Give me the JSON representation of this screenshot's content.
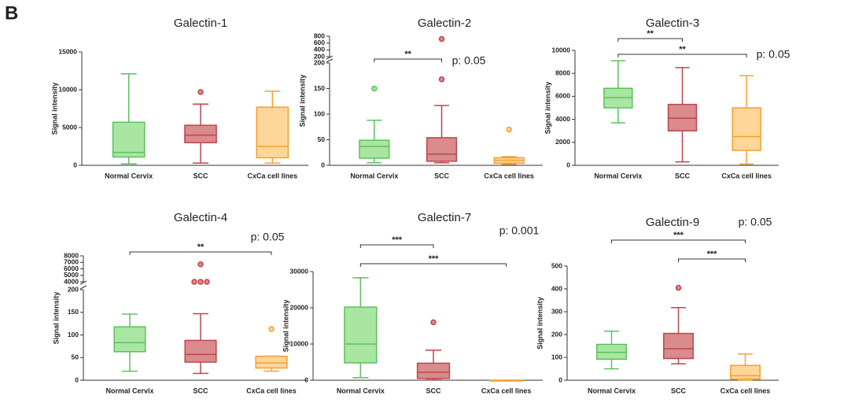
{
  "panel_label": "B",
  "chart_data": [
    {
      "type": "box",
      "title": "Galectin-1",
      "y_label": "Signal intensity",
      "categories": [
        "Normal Cervix",
        "SCC",
        "CxCa cell lines"
      ],
      "colors": [
        {
          "fill": "#a9e6a1",
          "stroke": "#5cc15c"
        },
        {
          "fill": "#d98b8d",
          "stroke": "#c0454a"
        },
        {
          "fill": "#ffd699",
          "stroke": "#f5a030"
        }
      ],
      "boxes": [
        {
          "min": 200,
          "q1": 1100,
          "median": 1700,
          "q3": 5700,
          "max": 12100,
          "outliers": []
        },
        {
          "min": 300,
          "q1": 3000,
          "median": 4000,
          "q3": 5300,
          "max": 8100,
          "outliers": [
            9700
          ]
        },
        {
          "min": 300,
          "q1": 1000,
          "median": 2500,
          "q3": 7700,
          "max": 9800,
          "outliers": []
        }
      ],
      "ylim": [
        0,
        15000
      ],
      "yticks": [
        0,
        5000,
        10000,
        15000
      ],
      "annotations": []
    },
    {
      "type": "box",
      "title": "Galectin-2",
      "y_label": "Signal intensity",
      "categories": [
        "Normal Cervix",
        "SCC",
        "CxCa cell lines"
      ],
      "colors": [
        {
          "fill": "#a9e6a1",
          "stroke": "#5cc15c"
        },
        {
          "fill": "#d98b8d",
          "stroke": "#c0454a"
        },
        {
          "fill": "#ffd699",
          "stroke": "#f5a030"
        }
      ],
      "boxes": [
        {
          "min": 5,
          "q1": 14,
          "median": 37,
          "q3": 49,
          "max": 88,
          "outliers": [
            150
          ]
        },
        {
          "min": 5,
          "q1": 8,
          "median": 22,
          "q3": 54,
          "max": 117,
          "outliers": [
            168,
            720
          ]
        },
        {
          "min": 2,
          "q1": 4,
          "median": 10,
          "q3": 15,
          "max": 17,
          "outliers": [
            70
          ]
        }
      ],
      "ylim": [
        0,
        200
      ],
      "yticks": [
        0,
        50,
        100,
        150,
        200
      ],
      "axis_break": {
        "ylim": [
          200,
          800
        ],
        "yticks": [
          200,
          400,
          600,
          800
        ]
      },
      "annotations": [
        {
          "label": "**",
          "between": [
            0,
            1
          ]
        }
      ],
      "p_label": "p: 0.05"
    },
    {
      "type": "box",
      "title": "Galectin-3",
      "y_label": "Signal intensity",
      "categories": [
        "Normal Cervix",
        "SCC",
        "CxCa cell lines"
      ],
      "colors": [
        {
          "fill": "#a9e6a1",
          "stroke": "#5cc15c"
        },
        {
          "fill": "#d98b8d",
          "stroke": "#c0454a"
        },
        {
          "fill": "#ffd699",
          "stroke": "#f5a030"
        }
      ],
      "boxes": [
        {
          "min": 3700,
          "q1": 5000,
          "median": 5900,
          "q3": 6700,
          "max": 9100,
          "outliers": []
        },
        {
          "min": 300,
          "q1": 3000,
          "median": 4100,
          "q3": 5300,
          "max": 8500,
          "outliers": []
        },
        {
          "min": 100,
          "q1": 1300,
          "median": 2500,
          "q3": 5000,
          "max": 7800,
          "outliers": []
        }
      ],
      "ylim": [
        0,
        10000
      ],
      "yticks": [
        0,
        2000,
        4000,
        6000,
        8000,
        10000
      ],
      "annotations": [
        {
          "label": "**",
          "between": [
            0,
            1
          ]
        },
        {
          "label": "**",
          "between": [
            0,
            2
          ]
        }
      ],
      "p_label": "p: 0.05"
    },
    {
      "type": "box",
      "title": "Galectin-4",
      "y_label": "Signal intensity",
      "categories": [
        "Normal Cervix",
        "SCC",
        "CxCa cell lines"
      ],
      "colors": [
        {
          "fill": "#a9e6a1",
          "stroke": "#5cc15c"
        },
        {
          "fill": "#d98b8d",
          "stroke": "#c0454a"
        },
        {
          "fill": "#ffd699",
          "stroke": "#f5a030"
        }
      ],
      "boxes": [
        {
          "min": 20,
          "q1": 63,
          "median": 83,
          "q3": 118,
          "max": 146,
          "outliers": []
        },
        {
          "min": 15,
          "q1": 40,
          "median": 57,
          "q3": 88,
          "max": 147,
          "outliers": [
            4000,
            4000,
            4000,
            6700
          ]
        },
        {
          "min": 20,
          "q1": 27,
          "median": 38,
          "q3": 53,
          "max": 53,
          "outliers": [
            113
          ]
        }
      ],
      "ylim": [
        0,
        200
      ],
      "yticks": [
        0,
        50,
        100,
        150,
        200
      ],
      "axis_break": {
        "ylim": [
          4000,
          8000
        ],
        "yticks": [
          4000,
          5000,
          6000,
          7000,
          8000
        ]
      },
      "annotations": [
        {
          "label": "**",
          "between": [
            0,
            2
          ]
        }
      ],
      "p_label": "p: 0.05"
    },
    {
      "type": "box",
      "title": "Galectin-7",
      "y_label": "Signal intensity",
      "categories": [
        "Normal Cervix",
        "SCC",
        "CxCa cell lines"
      ],
      "colors": [
        {
          "fill": "#a9e6a1",
          "stroke": "#5cc15c"
        },
        {
          "fill": "#d98b8d",
          "stroke": "#c0454a"
        },
        {
          "fill": "#ffd699",
          "stroke": "#f5a030"
        }
      ],
      "boxes": [
        {
          "min": 700,
          "q1": 4800,
          "median": 10000,
          "q3": 20200,
          "max": 28300,
          "outliers": []
        },
        {
          "min": 100,
          "q1": 500,
          "median": 2200,
          "q3": 4700,
          "max": 8300,
          "outliers": [
            16000
          ]
        },
        {
          "min": 0,
          "q1": 0,
          "median": 0,
          "q3": 0,
          "max": 0,
          "outliers": []
        }
      ],
      "ylim": [
        0,
        30000
      ],
      "yticks": [
        0,
        10000,
        20000,
        30000
      ],
      "annotations": [
        {
          "label": "***",
          "between": [
            0,
            1
          ]
        },
        {
          "label": "***",
          "between": [
            0,
            2
          ]
        }
      ],
      "p_label": "p: 0.001"
    },
    {
      "type": "box",
      "title": "Galectin-9",
      "y_label": "Signal intensity",
      "categories": [
        "Normal Cervix",
        "SCC",
        "CxCa cell lines"
      ],
      "colors": [
        {
          "fill": "#a9e6a1",
          "stroke": "#5cc15c"
        },
        {
          "fill": "#d98b8d",
          "stroke": "#c0454a"
        },
        {
          "fill": "#ffd699",
          "stroke": "#f5a030"
        }
      ],
      "boxes": [
        {
          "min": 50,
          "q1": 92,
          "median": 122,
          "q3": 157,
          "max": 215,
          "outliers": []
        },
        {
          "min": 72,
          "q1": 95,
          "median": 138,
          "q3": 205,
          "max": 318,
          "outliers": [
            405
          ]
        },
        {
          "min": 0,
          "q1": 5,
          "median": 20,
          "q3": 65,
          "max": 115,
          "outliers": []
        }
      ],
      "ylim": [
        0,
        500
      ],
      "yticks": [
        0,
        100,
        200,
        300,
        400,
        500
      ],
      "annotations": [
        {
          "label": "***",
          "between": [
            0,
            2
          ]
        },
        {
          "label": "***",
          "between": [
            1,
            2
          ]
        }
      ],
      "p_label": "p: 0.05"
    }
  ]
}
